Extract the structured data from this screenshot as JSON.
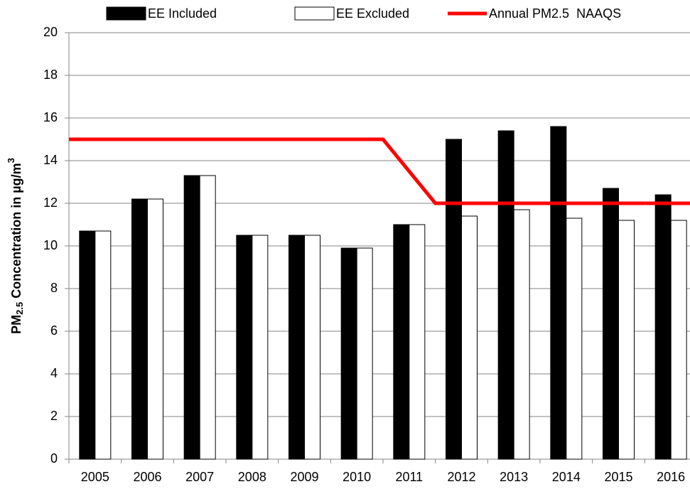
{
  "chart_data": {
    "type": "bar",
    "ylabel": {
      "base": "PM",
      "sub": "2.5",
      "mid": " Concentration in µg/m",
      "sup": "3"
    },
    "categories": [
      "2005",
      "2006",
      "2007",
      "2008",
      "2009",
      "2010",
      "2011",
      "2012",
      "2013",
      "2014",
      "2015",
      "2016"
    ],
    "series": [
      {
        "name": "EE Included",
        "color": "#000000",
        "values": [
          10.7,
          12.2,
          13.3,
          10.5,
          10.5,
          9.9,
          11.0,
          15.0,
          15.4,
          15.6,
          12.7,
          12.4
        ]
      },
      {
        "name": "EE Excluded",
        "color": "#ffffff",
        "values": [
          10.7,
          12.2,
          13.3,
          10.5,
          10.5,
          9.9,
          11.0,
          11.4,
          11.7,
          11.3,
          11.2,
          11.2
        ]
      },
      {
        "name": "Annual PM2.5  NAAQS",
        "type": "line",
        "color": "#ff0000",
        "values": [
          15,
          15,
          15,
          15,
          15,
          15,
          15,
          12,
          12,
          12,
          12,
          12
        ]
      }
    ],
    "ylim": [
      0,
      20
    ],
    "yticks": [
      0,
      2,
      4,
      6,
      8,
      10,
      12,
      14,
      16,
      18,
      20
    ],
    "grid": true,
    "legend": "top"
  }
}
